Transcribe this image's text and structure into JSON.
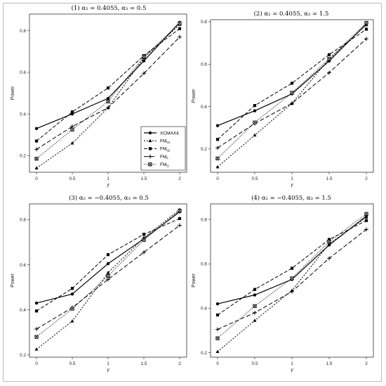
{
  "chart_data": [
    {
      "type": "line",
      "title": "(1) α₂ = 0.4055, α₃ = 0.5",
      "xlabel": "γ",
      "ylabel": "Power",
      "x": [
        0,
        0.5,
        1,
        1.5,
        2
      ],
      "ylim": [
        0.12,
        0.88
      ],
      "yticks": [
        0.2,
        0.4,
        0.6,
        0.8
      ],
      "series": [
        {
          "name": "XCMAX4",
          "values": [
            0.33,
            0.4,
            0.475,
            0.655,
            0.84
          ]
        },
        {
          "name": "FM01",
          "values": [
            0.14,
            0.26,
            0.43,
            0.67,
            0.83
          ]
        },
        {
          "name": "FM02",
          "values": [
            0.27,
            0.41,
            0.525,
            0.68,
            0.81
          ]
        },
        {
          "name": "FMF",
          "values": [
            0.23,
            0.34,
            0.43,
            0.595,
            0.77
          ]
        },
        {
          "name": "FMG",
          "values": [
            0.185,
            0.325,
            0.46,
            0.675,
            0.835
          ]
        }
      ]
    },
    {
      "type": "line",
      "title": "(2) α₂ = 0.4055, α₃ = 1.5",
      "xlabel": "γ",
      "ylabel": "Power",
      "x": [
        0,
        0.5,
        1,
        1.5,
        2
      ],
      "ylim": [
        0.09,
        0.81
      ],
      "yticks": [
        0.2,
        0.4,
        0.6,
        0.8
      ],
      "series": [
        {
          "name": "XCMAX4",
          "values": [
            0.31,
            0.38,
            0.46,
            0.615,
            0.79
          ]
        },
        {
          "name": "FM01",
          "values": [
            0.115,
            0.265,
            0.415,
            0.625,
            0.785
          ]
        },
        {
          "name": "FM02",
          "values": [
            0.245,
            0.405,
            0.51,
            0.645,
            0.765
          ]
        },
        {
          "name": "FMF",
          "values": [
            0.205,
            0.32,
            0.415,
            0.56,
            0.72
          ]
        },
        {
          "name": "FMG",
          "values": [
            0.155,
            0.325,
            0.465,
            0.625,
            0.795
          ]
        }
      ]
    },
    {
      "type": "line",
      "title": "(3) α₂ = −0.4055, α₃ = 0.5",
      "xlabel": "γ",
      "ylabel": "Power",
      "x": [
        0,
        0.5,
        1,
        1.5,
        2
      ],
      "ylim": [
        0.19,
        0.87
      ],
      "yticks": [
        0.2,
        0.4,
        0.6,
        0.8
      ],
      "series": [
        {
          "name": "XCMAX4",
          "values": [
            0.43,
            0.47,
            0.605,
            0.715,
            0.835
          ]
        },
        {
          "name": "FM01",
          "values": [
            0.225,
            0.35,
            0.565,
            0.72,
            0.845
          ]
        },
        {
          "name": "FM02",
          "values": [
            0.395,
            0.495,
            0.645,
            0.735,
            0.805
          ]
        },
        {
          "name": "FMF",
          "values": [
            0.315,
            0.41,
            0.535,
            0.655,
            0.775
          ]
        },
        {
          "name": "FMG",
          "values": [
            0.28,
            0.405,
            0.55,
            0.71,
            0.84
          ]
        }
      ]
    },
    {
      "type": "line",
      "title": "(4) α₂ = −0.4055, α₃ = 1.5",
      "xlabel": "γ",
      "ylabel": "Power",
      "x": [
        0,
        0.5,
        1,
        1.5,
        2
      ],
      "ylim": [
        0.18,
        0.87
      ],
      "yticks": [
        0.2,
        0.4,
        0.6,
        0.8
      ],
      "series": [
        {
          "name": "XCMAX4",
          "values": [
            0.42,
            0.46,
            0.53,
            0.685,
            0.815
          ]
        },
        {
          "name": "FM01",
          "values": [
            0.205,
            0.345,
            0.48,
            0.69,
            0.81
          ]
        },
        {
          "name": "FM02",
          "values": [
            0.37,
            0.485,
            0.58,
            0.71,
            0.795
          ]
        },
        {
          "name": "FMF",
          "values": [
            0.305,
            0.38,
            0.475,
            0.625,
            0.755
          ]
        },
        {
          "name": "FMG",
          "values": [
            0.265,
            0.41,
            0.535,
            0.7,
            0.825
          ]
        }
      ]
    }
  ],
  "legend": {
    "placement": "bottom-right of panel 1",
    "entries": [
      {
        "key": "XCMAX4",
        "text": "XCMAX4",
        "sub": ""
      },
      {
        "key": "FM01",
        "text": "FM",
        "sub": "01"
      },
      {
        "key": "FM02",
        "text": "FM",
        "sub": "02"
      },
      {
        "key": "FMF",
        "text": "FM",
        "sub": "F"
      },
      {
        "key": "FMG",
        "text": "FM",
        "sub": "G"
      }
    ]
  },
  "styles": {
    "line_color": "#000000",
    "border_color": "#bdbdbd",
    "XCMAX4": {
      "dash": "",
      "marker": "circle",
      "width": 1.2
    },
    "FM01": {
      "dash": "2,2",
      "marker": "triangle",
      "width": 1.0
    },
    "FM02": {
      "dash": "5,2.5",
      "marker": "square",
      "width": 1.0
    },
    "FMF": {
      "dash": "6,3",
      "marker": "plus",
      "width": 1.0
    },
    "FMG": {
      "dash": "1,1.6",
      "marker": "boxcross",
      "width": 1.0
    }
  }
}
